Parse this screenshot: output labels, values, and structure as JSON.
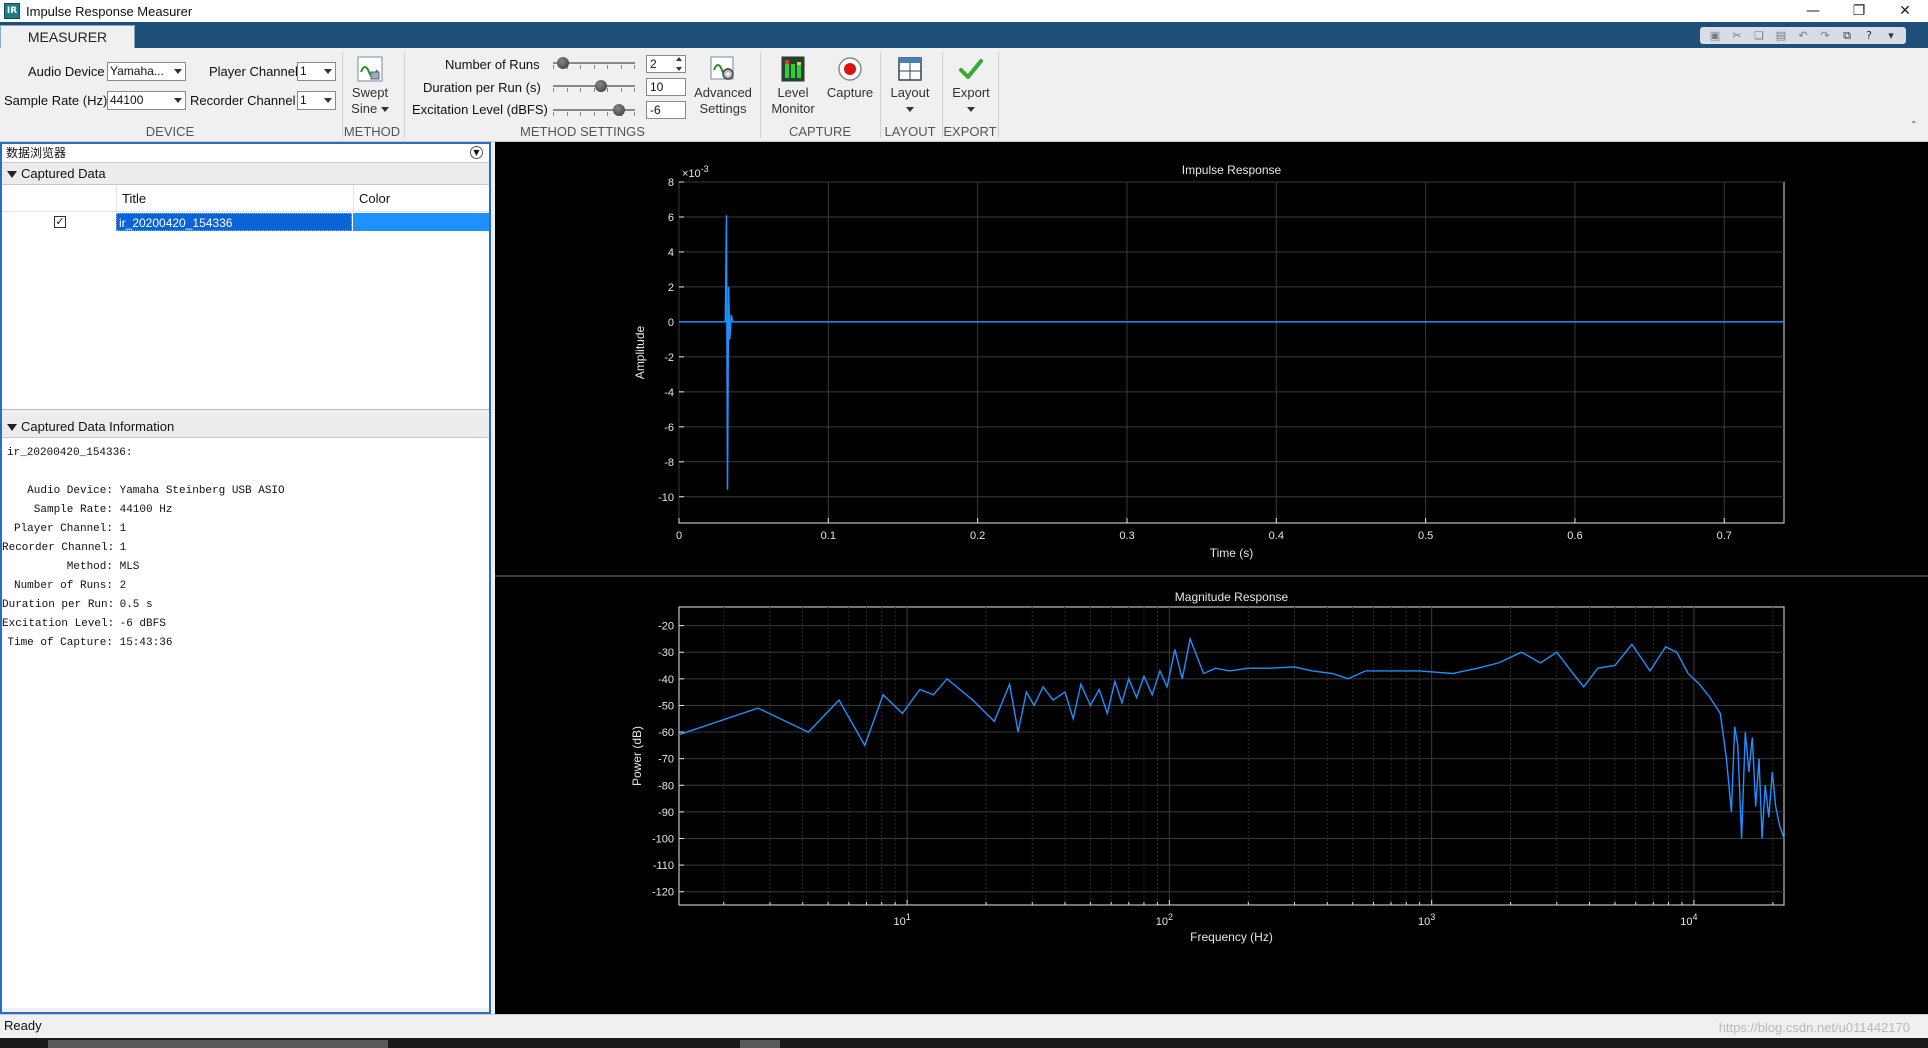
{
  "window": {
    "title": "Impulse Response Measurer",
    "app_icon_text": "IR",
    "controls": {
      "minimize": "—",
      "restore": "❐",
      "close": "✕"
    }
  },
  "ribbon": {
    "tab_label": "MEASURER",
    "device": {
      "audio_device_label": "Audio Device",
      "audio_device_value": "Yamaha...",
      "player_channel_label": "Player Channel",
      "player_channel_value": "1",
      "sample_rate_label": "Sample Rate (Hz)",
      "sample_rate_value": "44100",
      "recorder_channel_label": "Recorder Channel",
      "recorder_channel_value": "1",
      "section_label": "DEVICE"
    },
    "method": {
      "button_line1": "Swept",
      "button_line2": "Sine",
      "section_label": "METHOD"
    },
    "method_settings": {
      "runs_label": "Number of Runs",
      "runs_value": "2",
      "duration_label": "Duration per Run (s)",
      "duration_value": "10",
      "excitation_label": "Excitation Level (dBFS)",
      "excitation_value": "-6",
      "advanced_line1": "Advanced",
      "advanced_line2": "Settings",
      "section_label": "METHOD SETTINGS",
      "sliders": {
        "runs_level": 0.05,
        "duration_level": 0.6,
        "excitation_level": 0.85
      }
    },
    "capture": {
      "level_line1": "Level",
      "level_line2": "Monitor",
      "capture_label": "Capture",
      "section_label": "CAPTURE"
    },
    "layout": {
      "button_label": "Layout",
      "section_label": "LAYOUT"
    },
    "export": {
      "button_label": "Export",
      "section_label": "EXPORT"
    }
  },
  "browser": {
    "title": "数据浏览器",
    "captured_data_header": "Captured Data",
    "columns": {
      "title": "Title",
      "color": "Color"
    },
    "rows": [
      {
        "checked": "✓",
        "title": "ir_20200420_154336",
        "color": "#1e90ff"
      }
    ],
    "info_header": "Captured Data Information",
    "info_name": "ir_20200420_154336:",
    "info": [
      {
        "key": "Audio Device:",
        "value": "Yamaha Steinberg USB ASIO"
      },
      {
        "key": "Sample Rate:",
        "value": "44100 Hz"
      },
      {
        "key": "Player Channel:",
        "value": "1"
      },
      {
        "key": "Recorder Channel:",
        "value": "1"
      },
      {
        "key": "Method:",
        "value": "MLS"
      },
      {
        "key": "Number of Runs:",
        "value": "2"
      },
      {
        "key": "Duration per Run:",
        "value": "0.5 s"
      },
      {
        "key": "Excitation Level:",
        "value": "-6 dBFS"
      },
      {
        "key": "Time of Capture:",
        "value": "15:43:36"
      }
    ]
  },
  "status": {
    "text": "Ready",
    "watermark": "https://blog.csdn.net/u011442170"
  },
  "colors": {
    "accent": "#1d4f7a",
    "trace": "#1e90ff",
    "selection": "#0a64d8"
  },
  "chart_data": [
    {
      "type": "line",
      "title": "Impulse Response",
      "xlabel": "Time (s)",
      "ylabel": "Amplitude",
      "exponent_label": "×10",
      "exponent_value": "-3",
      "xlim": [
        0,
        0.74
      ],
      "ylim": [
        -11.5,
        8
      ],
      "xticks": [
        0,
        0.1,
        0.2,
        0.3,
        0.4,
        0.5,
        0.6,
        0.7
      ],
      "yticks": [
        8,
        6,
        4,
        2,
        0,
        -2,
        -4,
        -6,
        -8,
        -10
      ],
      "grid": true,
      "series": [
        {
          "x": [
            0,
            0.031,
            0.0318,
            0.0325,
            0.0332,
            0.034,
            0.035,
            0.036,
            0.74
          ],
          "y": [
            0,
            0,
            6.1,
            -9.6,
            2.0,
            -1.0,
            0.4,
            0,
            0
          ]
        }
      ]
    },
    {
      "type": "line",
      "title": "Magnitude Response",
      "xlabel": "Frequency (Hz)",
      "ylabel": "Power (dB)",
      "xscale": "log",
      "xlim": [
        1.35,
        22050
      ],
      "ylim": [
        -125,
        -13
      ],
      "xticks": [
        {
          "value": 10,
          "base": "10",
          "exp": "1"
        },
        {
          "value": 100,
          "base": "10",
          "exp": "2"
        },
        {
          "value": 1000,
          "base": "10",
          "exp": "3"
        },
        {
          "value": 10000,
          "base": "10",
          "exp": "4"
        }
      ],
      "yticks": [
        -20,
        -30,
        -40,
        -50,
        -60,
        -70,
        -80,
        -90,
        -100,
        -110,
        -120
      ],
      "grid": true,
      "series": [
        {
          "x": [
            1.35,
            2.7,
            4.2,
            5.5,
            6.9,
            8.1,
            9.6,
            11.2,
            12.6,
            14.2,
            17.8,
            21.5,
            24.6,
            26.5,
            28.5,
            30.5,
            33,
            36,
            40,
            43,
            46,
            50,
            54,
            58,
            62,
            66,
            70,
            75,
            80,
            86,
            92,
            98,
            105,
            112,
            120,
            135,
            150,
            170,
            200,
            240,
            300,
            350,
            420,
            480,
            560,
            700,
            900,
            1200,
            1500,
            1800,
            2200,
            2600,
            3000,
            3400,
            3800,
            4300,
            5000,
            5800,
            6800,
            7800,
            8600,
            9500,
            10500,
            11500,
            12600,
            13300,
            13900,
            14300,
            14700,
            15200,
            15700,
            16200,
            16700,
            17200,
            17700,
            18200,
            18700,
            19300,
            19900,
            20500,
            21200,
            22050
          ],
          "y": [
            -61,
            -51,
            -60,
            -48,
            -65,
            -46,
            -53,
            -44,
            -46,
            -40,
            -48,
            -56,
            -42,
            -60,
            -45,
            -50,
            -43,
            -48,
            -45,
            -55,
            -42,
            -50,
            -44,
            -53,
            -41,
            -49,
            -40,
            -47,
            -39,
            -46,
            -37,
            -43,
            -29,
            -40,
            -25,
            -38,
            -36,
            -37,
            -36,
            -36,
            -35.5,
            -37,
            -38,
            -40,
            -37,
            -37,
            -37,
            -38,
            -36,
            -34,
            -30,
            -34,
            -30,
            -37,
            -43,
            -36,
            -35,
            -27,
            -37,
            -28,
            -30,
            -38,
            -42,
            -47,
            -53,
            -70,
            -90,
            -58,
            -65,
            -100,
            -60,
            -75,
            -62,
            -88,
            -70,
            -100,
            -80,
            -92,
            -75,
            -88,
            -95,
            -100
          ]
        }
      ]
    }
  ]
}
